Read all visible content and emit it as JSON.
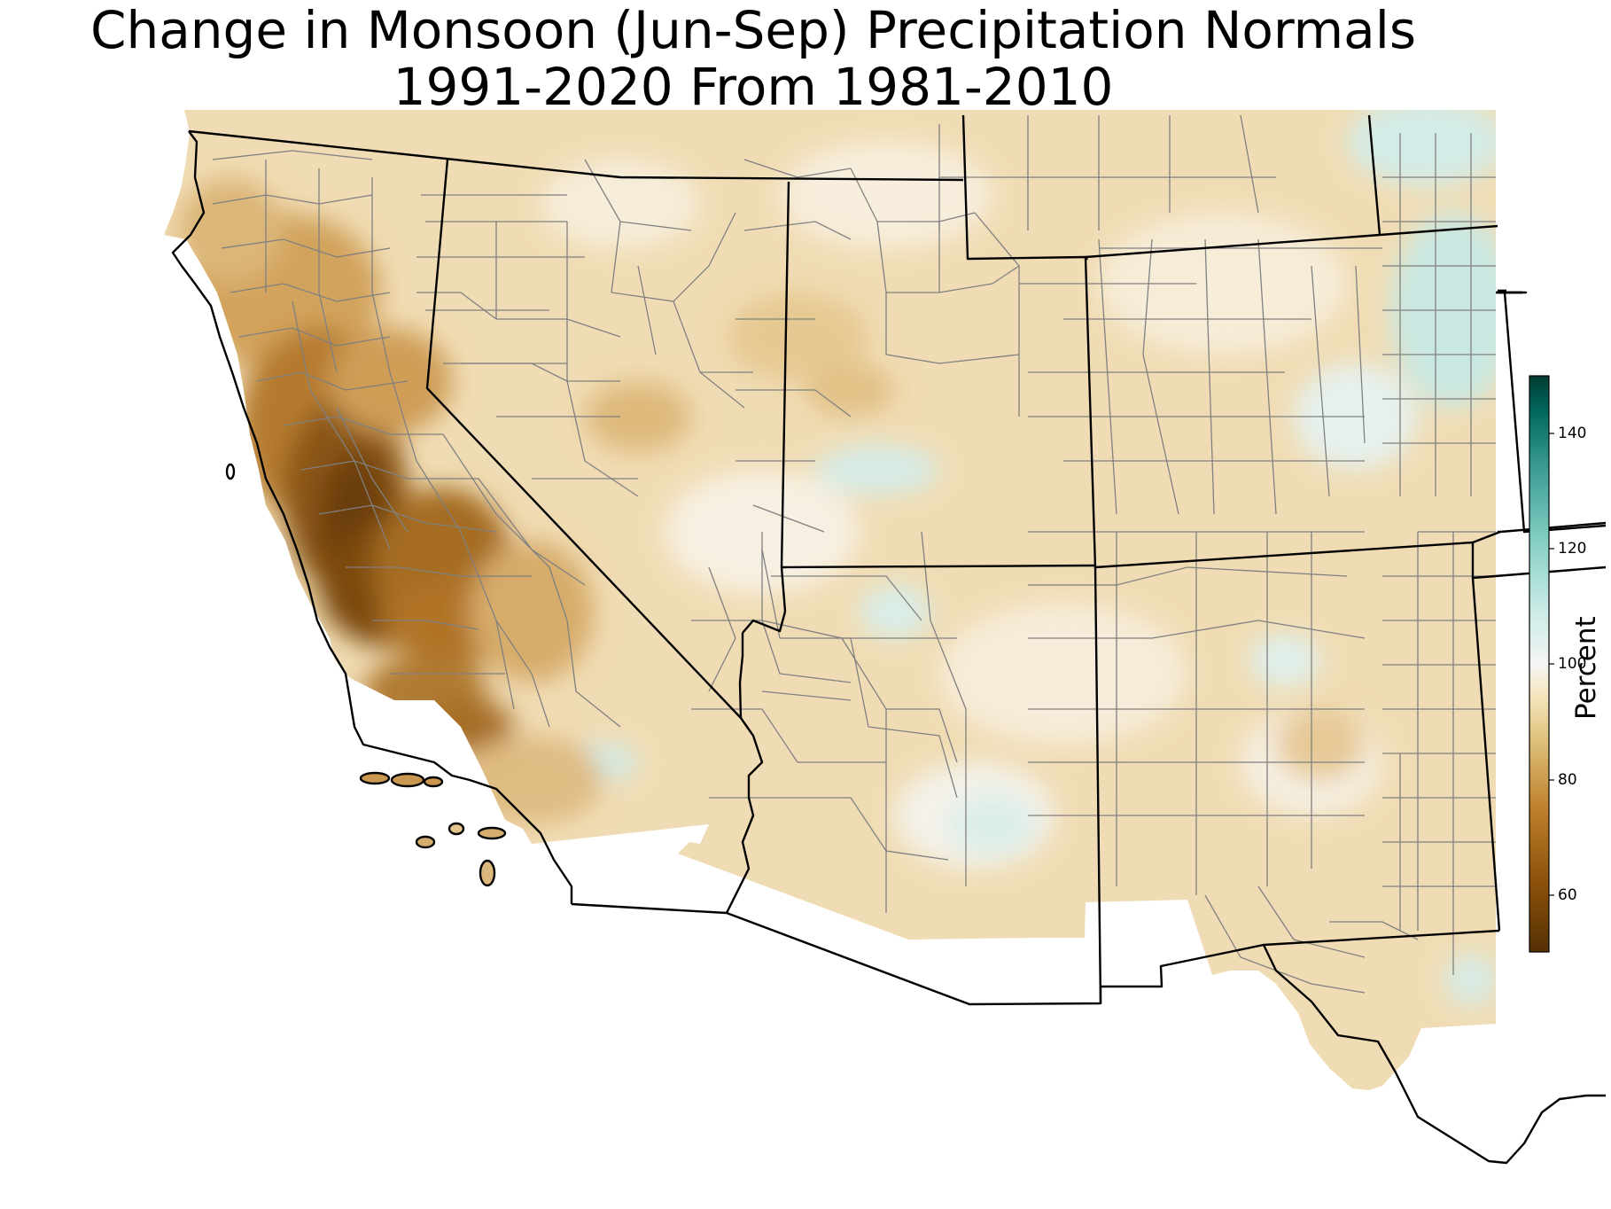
{
  "title": {
    "line1": "Change in Monsoon (Jun-Sep) Precipitation Normals",
    "line2": "1991-2020 From 1981-2010"
  },
  "colorbar": {
    "label": "Percent",
    "ticks": [
      "60",
      "80",
      "100",
      "120",
      "140"
    ],
    "range": [
      50,
      150
    ],
    "colors": {
      "low": "#543005",
      "mid_low": "#bf812d",
      "neutral": "#f5f5f5",
      "mid_high": "#80cdc1",
      "high": "#003c30"
    }
  },
  "map_colors": {
    "background_fill": "#f0dcb4",
    "state_border": "#000000",
    "county_border": "#808080"
  }
}
